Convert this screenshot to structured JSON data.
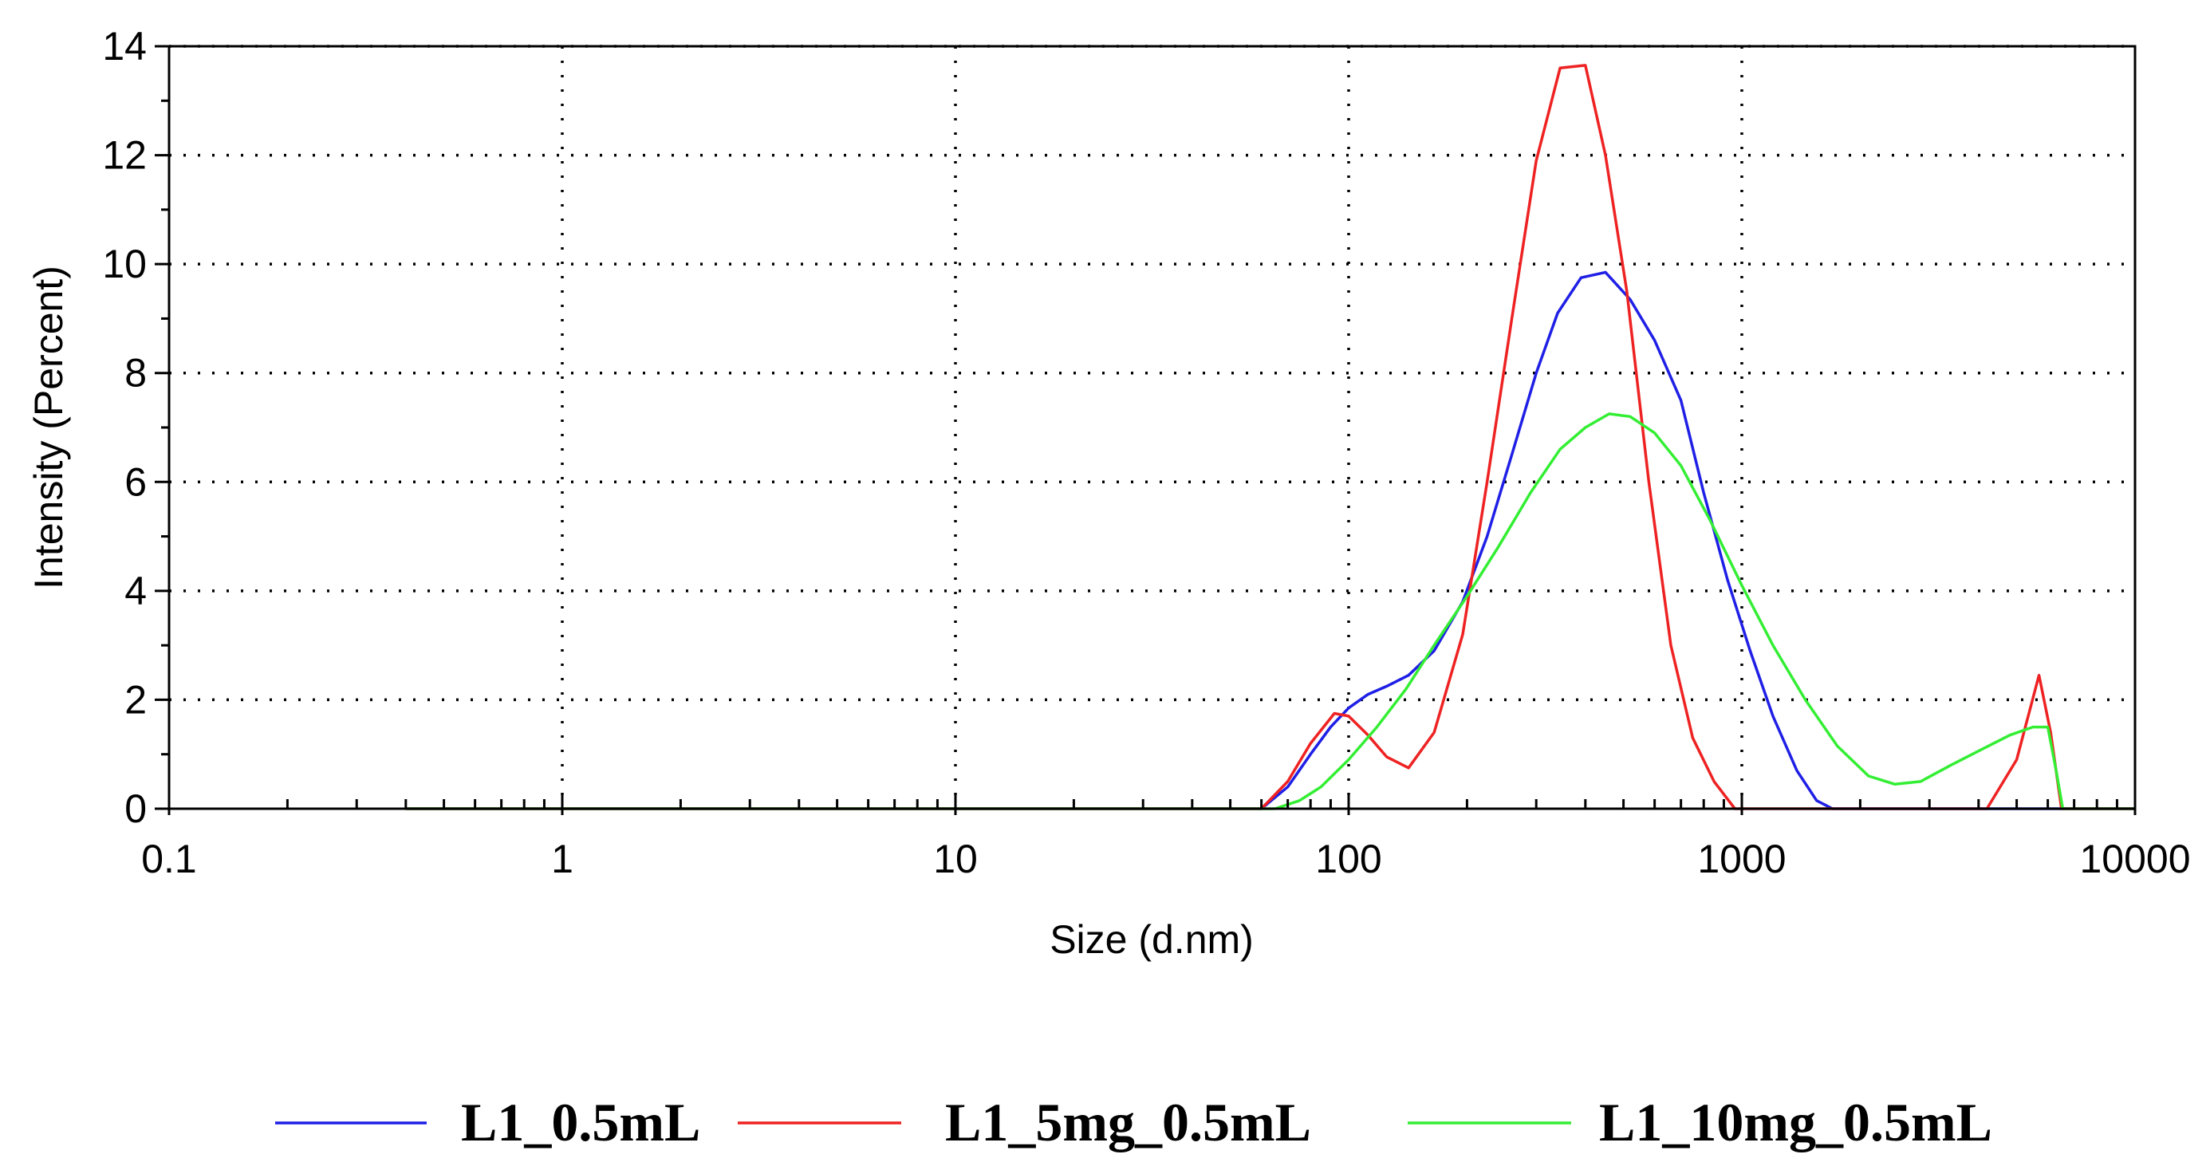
{
  "chart_data": {
    "type": "line",
    "xscale": "log",
    "xlabel": "Size (d.nm)",
    "ylabel": "Intensity (Percent)",
    "xlim": [
      0.1,
      10000
    ],
    "ylim": [
      0,
      14
    ],
    "grid": true,
    "legend_position": "bottom",
    "x_tick_labels": [
      "0.1",
      "1",
      "10",
      "100",
      "1000",
      "10000"
    ],
    "y_tick_labels": [
      "0",
      "2",
      "4",
      "6",
      "8",
      "10",
      "12",
      "14"
    ],
    "series": [
      {
        "name": "L1_0.5mL",
        "color": "#1f1fe6",
        "points": [
          [
            0.4,
            0
          ],
          [
            60,
            0
          ],
          [
            70,
            0.4
          ],
          [
            80,
            1.0
          ],
          [
            90,
            1.5
          ],
          [
            100,
            1.85
          ],
          [
            112,
            2.1
          ],
          [
            125,
            2.25
          ],
          [
            142,
            2.45
          ],
          [
            165,
            2.9
          ],
          [
            195,
            3.8
          ],
          [
            225,
            5.0
          ],
          [
            260,
            6.5
          ],
          [
            300,
            8.0
          ],
          [
            340,
            9.1
          ],
          [
            390,
            9.75
          ],
          [
            450,
            9.85
          ],
          [
            520,
            9.35
          ],
          [
            600,
            8.6
          ],
          [
            700,
            7.5
          ],
          [
            800,
            5.8
          ],
          [
            920,
            4.2
          ],
          [
            1050,
            2.9
          ],
          [
            1200,
            1.7
          ],
          [
            1380,
            0.7
          ],
          [
            1550,
            0.15
          ],
          [
            1700,
            0
          ],
          [
            10000,
            0
          ]
        ]
      },
      {
        "name": "L1_5mg_0.5mL",
        "color": "#ee2222",
        "points": [
          [
            0.4,
            0
          ],
          [
            60,
            0
          ],
          [
            70,
            0.5
          ],
          [
            80,
            1.2
          ],
          [
            92,
            1.75
          ],
          [
            100,
            1.7
          ],
          [
            112,
            1.35
          ],
          [
            125,
            0.95
          ],
          [
            142,
            0.75
          ],
          [
            165,
            1.4
          ],
          [
            195,
            3.2
          ],
          [
            225,
            6.0
          ],
          [
            260,
            9.0
          ],
          [
            300,
            11.9
          ],
          [
            345,
            13.6
          ],
          [
            400,
            13.65
          ],
          [
            450,
            12.0
          ],
          [
            510,
            9.5
          ],
          [
            580,
            6.0
          ],
          [
            660,
            3.0
          ],
          [
            750,
            1.3
          ],
          [
            850,
            0.5
          ],
          [
            960,
            0
          ],
          [
            4200,
            0
          ],
          [
            5000,
            0.9
          ],
          [
            5700,
            2.45
          ],
          [
            6100,
            1.4
          ],
          [
            6500,
            0
          ],
          [
            10000,
            0
          ]
        ]
      },
      {
        "name": "L1_10mg_0.5mL",
        "color": "#33ee33",
        "points": [
          [
            0.4,
            0
          ],
          [
            65,
            0
          ],
          [
            75,
            0.15
          ],
          [
            85,
            0.4
          ],
          [
            100,
            0.9
          ],
          [
            118,
            1.5
          ],
          [
            140,
            2.2
          ],
          [
            165,
            3.0
          ],
          [
            200,
            3.9
          ],
          [
            240,
            4.8
          ],
          [
            290,
            5.8
          ],
          [
            345,
            6.6
          ],
          [
            400,
            7.0
          ],
          [
            460,
            7.25
          ],
          [
            520,
            7.2
          ],
          [
            600,
            6.9
          ],
          [
            700,
            6.3
          ],
          [
            830,
            5.3
          ],
          [
            1000,
            4.1
          ],
          [
            1200,
            3.0
          ],
          [
            1450,
            2.0
          ],
          [
            1750,
            1.15
          ],
          [
            2100,
            0.6
          ],
          [
            2450,
            0.45
          ],
          [
            2850,
            0.5
          ],
          [
            3400,
            0.8
          ],
          [
            4100,
            1.1
          ],
          [
            4800,
            1.35
          ],
          [
            5500,
            1.5
          ],
          [
            6000,
            1.5
          ],
          [
            6300,
            0.7
          ],
          [
            6550,
            0
          ],
          [
            10000,
            0
          ]
        ]
      }
    ]
  }
}
